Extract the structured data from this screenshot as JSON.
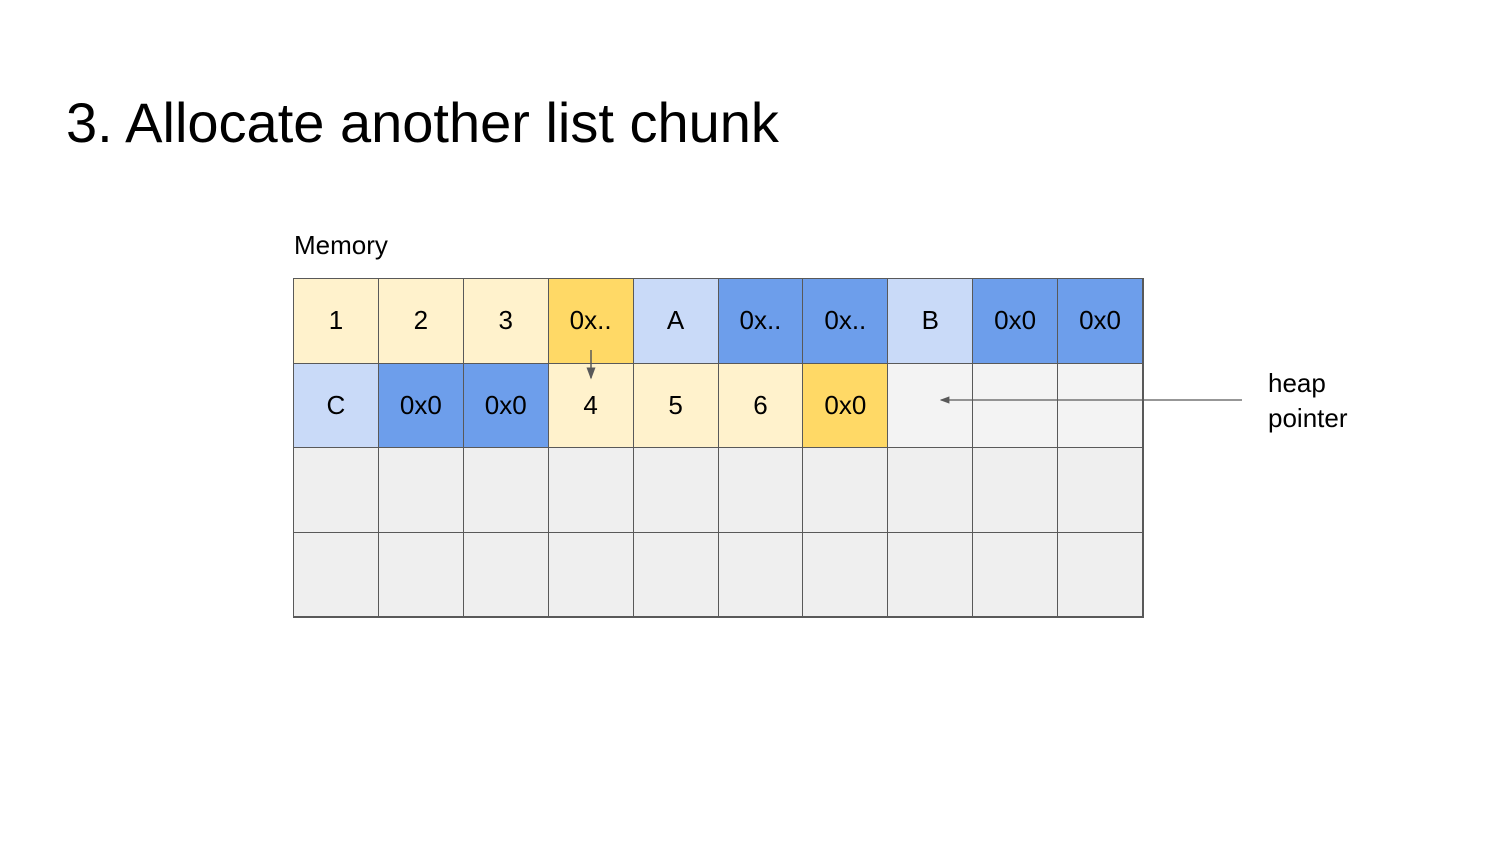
{
  "title": "3. Allocate another list chunk",
  "memory_label": "Memory",
  "heap_pointer_label": [
    "heap",
    "pointer"
  ],
  "colors": {
    "value": "#fff2cc",
    "pointer": "#ffd966",
    "key": "#c9daf8",
    "null_pointer": "#6d9eeb",
    "empty": "#efefef",
    "border": "#595959"
  },
  "rows": [
    [
      {
        "t": "1",
        "k": "value"
      },
      {
        "t": "2",
        "k": "value"
      },
      {
        "t": "3",
        "k": "value"
      },
      {
        "t": "0x..",
        "k": "pointer"
      },
      {
        "t": "A",
        "k": "key"
      },
      {
        "t": "0x..",
        "k": "null_pointer"
      },
      {
        "t": "0x..",
        "k": "null_pointer"
      },
      {
        "t": "B",
        "k": "key"
      },
      {
        "t": "0x0",
        "k": "null_pointer"
      },
      {
        "t": "0x0",
        "k": "null_pointer"
      }
    ],
    [
      {
        "t": "C",
        "k": "key"
      },
      {
        "t": "0x0",
        "k": "null_pointer"
      },
      {
        "t": "0x0",
        "k": "null_pointer"
      },
      {
        "t": "4",
        "k": "value"
      },
      {
        "t": "5",
        "k": "value"
      },
      {
        "t": "6",
        "k": "value"
      },
      {
        "t": "0x0",
        "k": "pointer"
      },
      {
        "t": "",
        "k": "empty"
      },
      {
        "t": "",
        "k": "empty"
      },
      {
        "t": "",
        "k": "empty"
      }
    ],
    [
      {
        "t": "",
        "k": "empty"
      },
      {
        "t": "",
        "k": "empty"
      },
      {
        "t": "",
        "k": "empty"
      },
      {
        "t": "",
        "k": "empty"
      },
      {
        "t": "",
        "k": "empty"
      },
      {
        "t": "",
        "k": "empty"
      },
      {
        "t": "",
        "k": "empty"
      },
      {
        "t": "",
        "k": "empty"
      },
      {
        "t": "",
        "k": "empty"
      },
      {
        "t": "",
        "k": "empty"
      }
    ],
    [
      {
        "t": "",
        "k": "empty"
      },
      {
        "t": "",
        "k": "empty"
      },
      {
        "t": "",
        "k": "empty"
      },
      {
        "t": "",
        "k": "empty"
      },
      {
        "t": "",
        "k": "empty"
      },
      {
        "t": "",
        "k": "empty"
      },
      {
        "t": "",
        "k": "empty"
      },
      {
        "t": "",
        "k": "empty"
      },
      {
        "t": "",
        "k": "empty"
      },
      {
        "t": "",
        "k": "empty"
      }
    ]
  ]
}
